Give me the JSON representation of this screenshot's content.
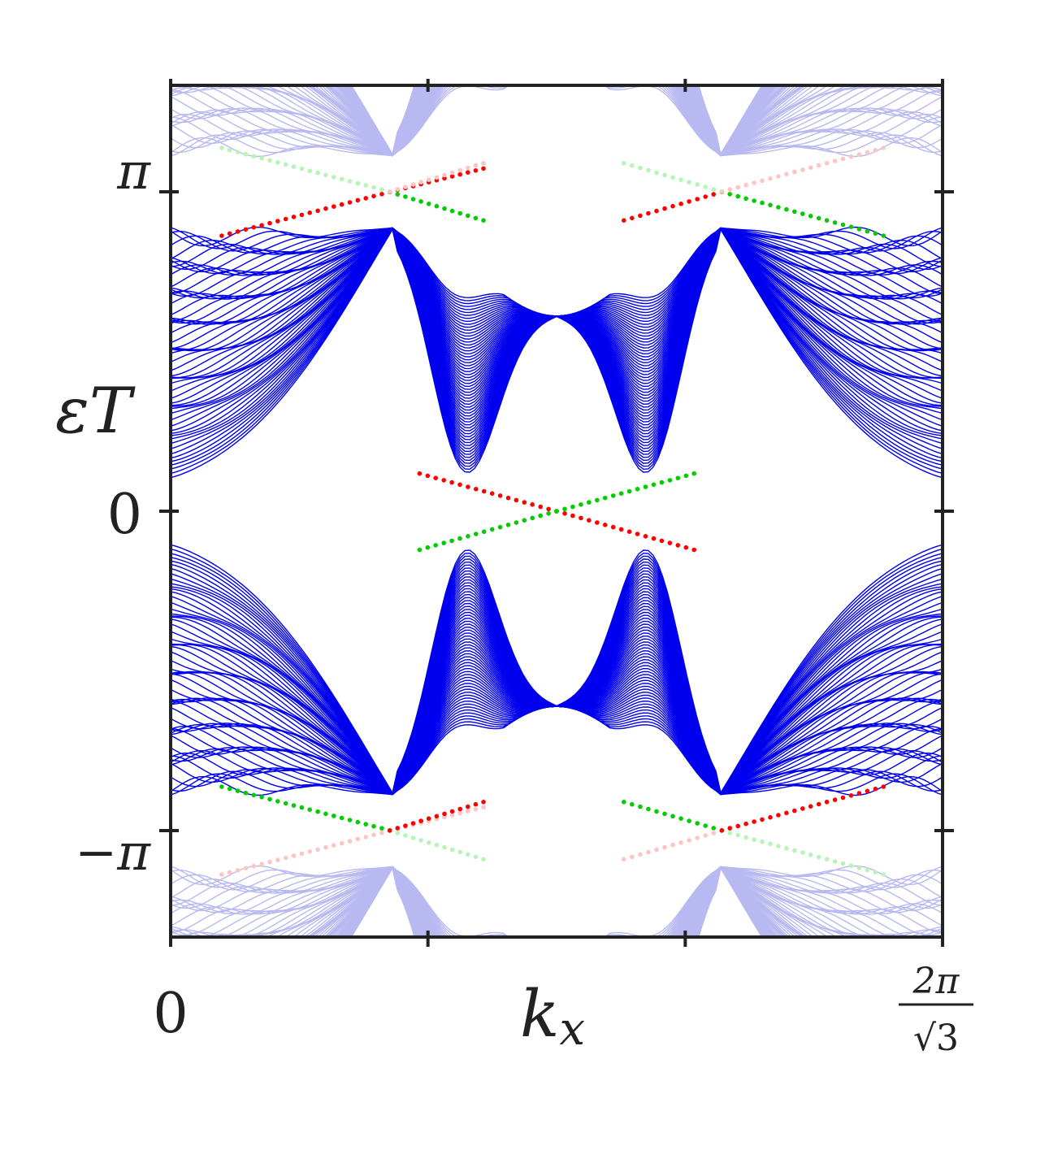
{
  "chart_data": {
    "type": "line",
    "title": "",
    "xlabel": {
      "base": "k",
      "sub": "x"
    },
    "ylabel": {
      "base": "ε",
      "var": "T"
    },
    "x_range": [
      0,
      3.6276
    ],
    "y_range": [
      -4.1888,
      4.1888
    ],
    "x_ticks": [
      {
        "value": 0,
        "label": "0"
      },
      {
        "value": 3.6276,
        "label_num": "2π",
        "label_den": "√3"
      }
    ],
    "y_ticks": [
      {
        "value": 3.1416,
        "label": "π"
      },
      {
        "value": 0,
        "label": "0"
      },
      {
        "value": -3.1416,
        "label": "−π"
      }
    ],
    "minor_x_ticks": [
      1.2092,
      2.4184
    ],
    "band_series": {
      "name": "",
      "color": "#0000ee",
      "faded_color": "#b9b9f2",
      "count": 60,
      "description_values": {
        "upper_band_edge_min": 0.33,
        "upper_band_edge_max": 2.81,
        "lower_band_edge_min": -2.81,
        "lower_band_edge_max": -0.33,
        "crossing_x": 1.8138
      }
    },
    "edge_states": [
      {
        "color": "#ff0000",
        "points": [
          [
            1.17,
            0.37
          ],
          [
            1.8138,
            0.0
          ],
          [
            2.46,
            -0.38
          ]
        ]
      },
      {
        "color": "#00cc00",
        "points": [
          [
            1.17,
            -0.38
          ],
          [
            1.8138,
            0.0
          ],
          [
            2.46,
            0.37
          ]
        ]
      },
      {
        "color": "#ff0000",
        "points": [
          [
            0.24,
            2.71
          ],
          [
            1.03,
            3.14
          ],
          [
            1.47,
            3.37
          ]
        ]
      },
      {
        "color": "#00cc00",
        "points": [
          [
            1.03,
            3.14
          ],
          [
            1.47,
            2.86
          ]
        ]
      },
      {
        "color": "#ff0000",
        "points": [
          [
            2.13,
            2.86
          ],
          [
            2.59,
            3.14
          ]
        ]
      },
      {
        "color": "#00cc00",
        "points": [
          [
            2.59,
            3.14
          ],
          [
            3.35,
            2.71
          ]
        ]
      },
      {
        "color": "#00cc00",
        "points": [
          [
            0.24,
            -2.71
          ],
          [
            1.03,
            -3.14
          ]
        ]
      },
      {
        "color": "#ff0000",
        "points": [
          [
            1.03,
            -3.14
          ],
          [
            1.47,
            -2.86
          ]
        ]
      },
      {
        "color": "#00cc00",
        "points": [
          [
            2.13,
            -2.86
          ],
          [
            2.59,
            -3.14
          ]
        ]
      },
      {
        "color": "#ff0000",
        "points": [
          [
            2.59,
            -3.14
          ],
          [
            3.35,
            -2.71
          ]
        ]
      }
    ],
    "edge_state_faded_colors": {
      "red": "#ffc4c4",
      "green": "#b6f5b6"
    }
  }
}
